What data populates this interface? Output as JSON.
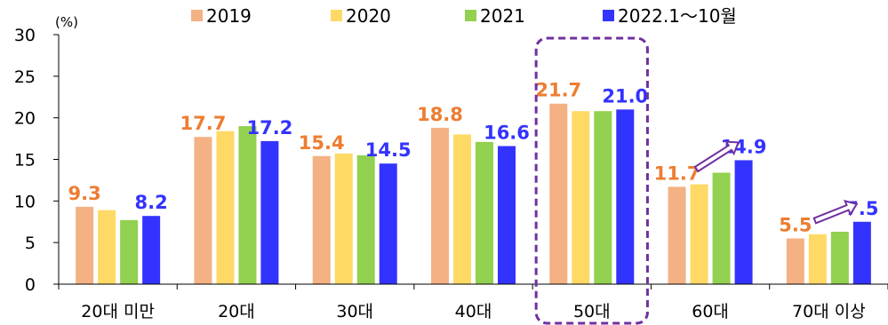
{
  "chart_data": {
    "type": "bar",
    "unit_label": "(%)",
    "categories": [
      "20대  미만",
      "20대",
      "30대",
      "40대",
      "50대",
      "60대",
      "70대  이상"
    ],
    "series": [
      {
        "name": "2019",
        "color": "#F4B183",
        "values": [
          9.3,
          17.7,
          15.4,
          18.8,
          21.7,
          11.7,
          5.5
        ]
      },
      {
        "name": "2020",
        "color": "#FFD966",
        "values": [
          8.9,
          18.4,
          15.7,
          18.0,
          20.8,
          12.0,
          6.0
        ]
      },
      {
        "name": "2021",
        "color": "#92D050",
        "values": [
          7.7,
          19.0,
          15.5,
          17.1,
          20.8,
          13.4,
          6.3
        ]
      },
      {
        "name": "2022.1～10월",
        "color": "#3333FF",
        "values": [
          8.2,
          17.2,
          14.5,
          16.6,
          21.0,
          14.9,
          7.5
        ]
      }
    ],
    "data_labels": [
      {
        "category_index": 0,
        "series_index": 0,
        "text": "9.3",
        "color": "#ED7D31"
      },
      {
        "category_index": 0,
        "series_index": 3,
        "text": "8.2",
        "color": "#3333FF"
      },
      {
        "category_index": 1,
        "series_index": 0,
        "text": "17.7",
        "color": "#ED7D31"
      },
      {
        "category_index": 1,
        "series_index": 3,
        "text": "17.2",
        "color": "#3333FF"
      },
      {
        "category_index": 2,
        "series_index": 0,
        "text": "15.4",
        "color": "#ED7D31"
      },
      {
        "category_index": 2,
        "series_index": 3,
        "text": "14.5",
        "color": "#3333FF"
      },
      {
        "category_index": 3,
        "series_index": 0,
        "text": "18.8",
        "color": "#ED7D31"
      },
      {
        "category_index": 3,
        "series_index": 3,
        "text": "16.6",
        "color": "#3333FF"
      },
      {
        "category_index": 4,
        "series_index": 0,
        "text": "21.7",
        "color": "#ED7D31"
      },
      {
        "category_index": 4,
        "series_index": 3,
        "text": "21.0",
        "color": "#3333FF"
      },
      {
        "category_index": 5,
        "series_index": 0,
        "text": "11.7",
        "color": "#ED7D31"
      },
      {
        "category_index": 5,
        "series_index": 3,
        "text": "14.9",
        "color": "#3333FF"
      },
      {
        "category_index": 6,
        "series_index": 0,
        "text": "5.5",
        "color": "#ED7D31"
      },
      {
        "category_index": 6,
        "series_index": 3,
        "text": "7.5",
        "color": "#3333FF"
      }
    ],
    "y_ticks": [
      "0",
      "5",
      "10",
      "15",
      "20",
      "25",
      "30"
    ],
    "ylim": [
      0,
      30
    ],
    "legend_position": "top",
    "grid": false,
    "highlight_category_index": 4,
    "highlight_color": "#7030A0",
    "arrow_category_indices": [
      5,
      6
    ],
    "arrow_color": "#7030A0"
  }
}
